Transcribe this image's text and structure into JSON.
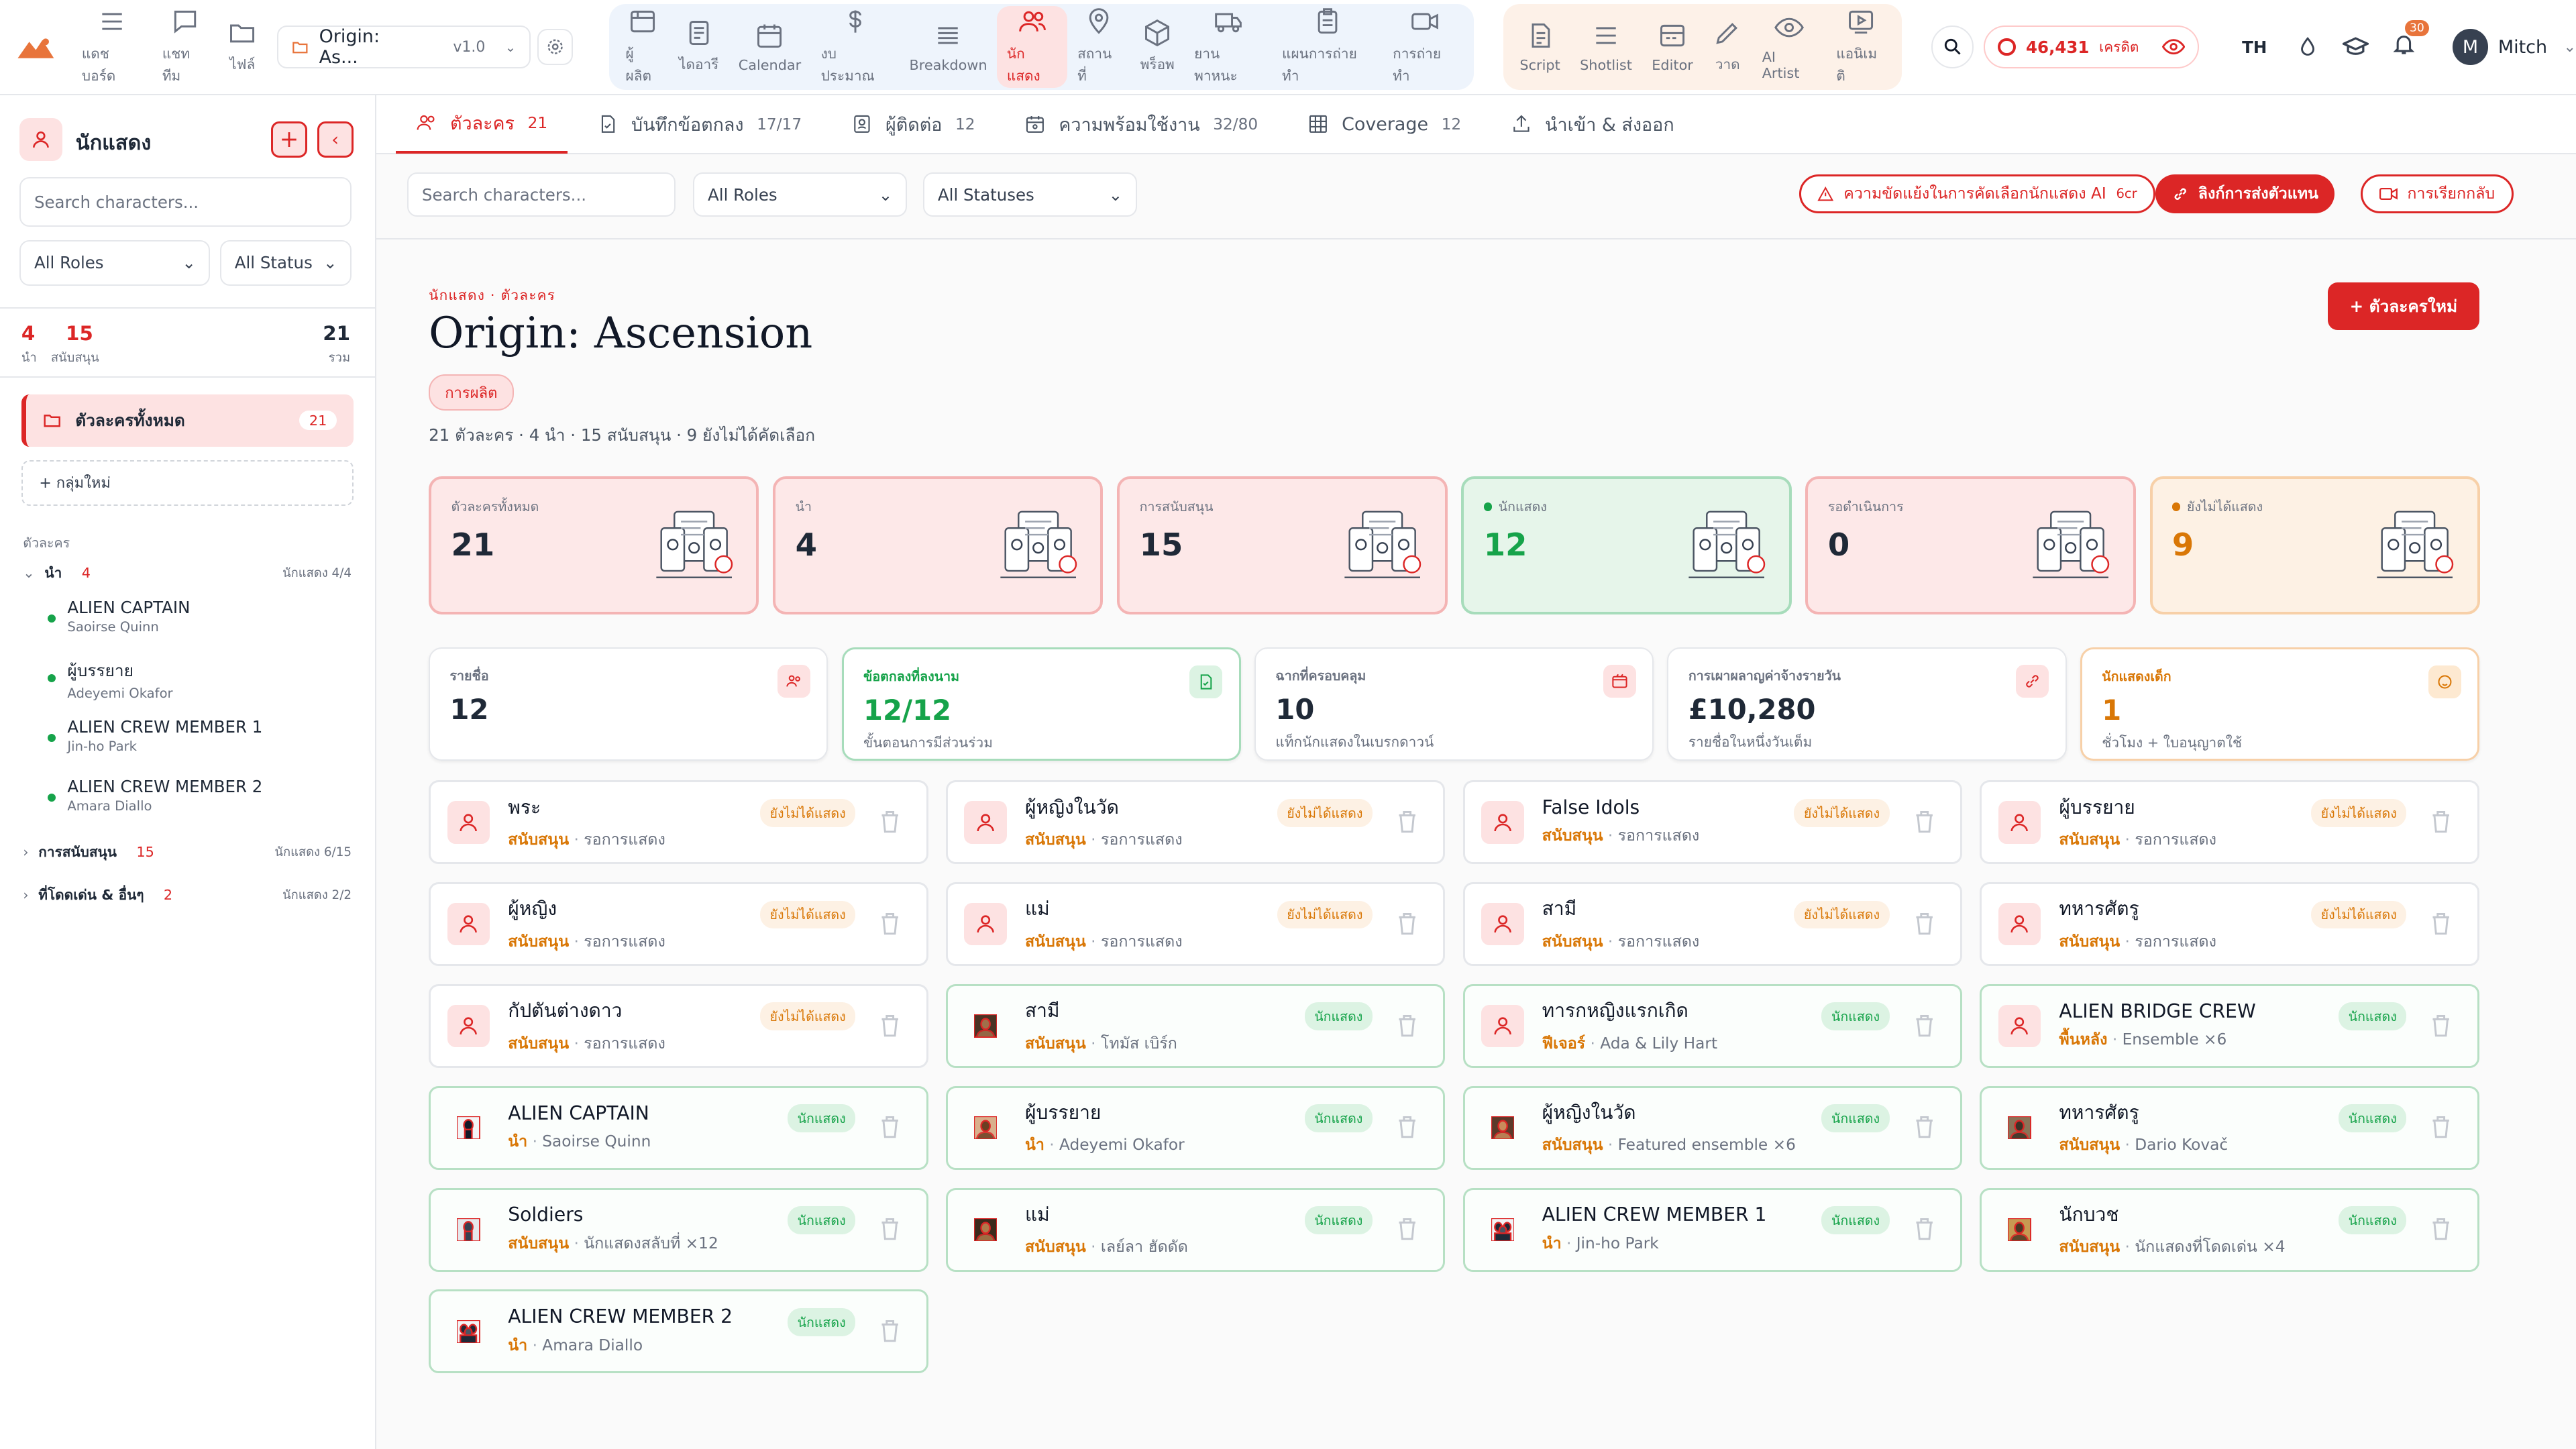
{
  "topbar": {
    "nav_left": [
      {
        "name": "dashboard",
        "label": "แดชบอร์ด"
      },
      {
        "name": "team-chat",
        "label": "แชททีม"
      },
      {
        "name": "files",
        "label": "ไฟล์"
      }
    ],
    "project": {
      "name": "Origin: As...",
      "version": "v1.0"
    },
    "nav_production": [
      {
        "name": "producer",
        "label": "ผู้ผลิต"
      },
      {
        "name": "diary",
        "label": "ไดอารี"
      },
      {
        "name": "calendar",
        "label": "Calendar"
      },
      {
        "name": "budget",
        "label": "งบประมาณ"
      },
      {
        "name": "breakdown",
        "label": "Breakdown"
      },
      {
        "name": "cast",
        "label": "นักแสดง"
      },
      {
        "name": "locations",
        "label": "สถานที่"
      },
      {
        "name": "props",
        "label": "พร็อพ"
      },
      {
        "name": "vehicles",
        "label": "ยานพาหนะ"
      },
      {
        "name": "shoot-plan",
        "label": "แผนการถ่ายทำ"
      },
      {
        "name": "shooting",
        "label": "การถ่ายทำ"
      }
    ],
    "nav_creative": [
      {
        "name": "script",
        "label": "Script"
      },
      {
        "name": "shotlist",
        "label": "Shotlist"
      },
      {
        "name": "editor",
        "label": "Editor"
      },
      {
        "name": "draw",
        "label": "วาด"
      },
      {
        "name": "ai-artist",
        "label": "AI Artist"
      },
      {
        "name": "animatic",
        "label": "แอนิเมติ"
      }
    ],
    "credits": "46,431",
    "credits_unit": "เครดิต",
    "lang": "TH",
    "notifications": "30",
    "user": {
      "initial": "M",
      "name": "Mitch"
    }
  },
  "sidebar": {
    "title": "นักแสดง",
    "search_placeholder": "Search characters...",
    "filter_role": "All Roles",
    "filter_status": "All Status",
    "stats": {
      "lead": "4",
      "lead_label": "นำ",
      "support": "15",
      "support_label": "สนับสนุน",
      "total": "21",
      "total_label": "รวม"
    },
    "all_chars": {
      "label": "ตัวละครทั้งหมด",
      "count": "21"
    },
    "new_group": "+  กลุ่มใหม่",
    "section_label": "ตัวละคร",
    "groups": [
      {
        "name": "นำ",
        "count": "4",
        "cast": "นักแสดง 4/4"
      },
      {
        "name": "การสนับสนุน",
        "count": "15",
        "cast": "นักแสดง 6/15"
      },
      {
        "name": "ที่โดดเด่น & อื่นๆ",
        "count": "2",
        "cast": "นักแสดง 2/2"
      }
    ],
    "lead_items": [
      {
        "name": "ALIEN CAPTAIN",
        "actor": "Saoirse Quinn"
      },
      {
        "name": "ผู้บรรยาย",
        "actor": "Adeyemi Okafor"
      },
      {
        "name": "ALIEN CREW MEMBER 1",
        "actor": "Jin-ho Park"
      },
      {
        "name": "ALIEN CREW MEMBER 2",
        "actor": "Amara Diallo"
      }
    ]
  },
  "tabs": [
    {
      "label": "ตัวละคร",
      "count": "21"
    },
    {
      "label": "บันทึกข้อตกลง",
      "count": "17/17"
    },
    {
      "label": "ผู้ติดต่อ",
      "count": "12"
    },
    {
      "label": "ความพร้อมใช้งาน",
      "count": "32/80"
    },
    {
      "label": "Coverage",
      "count": "12"
    },
    {
      "label": "นำเข้า & ส่งออก",
      "count": ""
    }
  ],
  "toolbar": {
    "search_placeholder": "Search characters...",
    "roles": "All Roles",
    "statuses": "All Statuses",
    "ai_conflict": "ความขัดแย้งในการคัดเลือกนักแสดง AI",
    "ai_cost": "6cr",
    "agent_links": "ลิงก์การส่งตัวแทน",
    "callbacks": "การเรียกกลับ"
  },
  "header": {
    "breadcrumb": "นักแสดง · ตัวละคร",
    "title": "Origin: Ascension",
    "tag": "การผลิต",
    "summary": "21 ตัวละคร · 4 นำ · 15 สนับสนุน · 9 ยังไม่ได้คัดเลือก",
    "new_button": "+ ตัวละครใหม่"
  },
  "stats": [
    {
      "label": "ตัวละครทั้งหมด",
      "value": "21",
      "tone": "red",
      "dot": false
    },
    {
      "label": "นำ",
      "value": "4",
      "tone": "red",
      "dot": false
    },
    {
      "label": "การสนับสนุน",
      "value": "15",
      "tone": "red",
      "dot": false
    },
    {
      "label": "นักแสดง",
      "value": "12",
      "tone": "green",
      "dot": true
    },
    {
      "label": "รอดำเนินการ",
      "value": "0",
      "tone": "red",
      "dot": false
    },
    {
      "label": "ยังไม่ได้แสดง",
      "value": "9",
      "tone": "orange",
      "dot": true
    }
  ],
  "minis": [
    {
      "label": "รายชื่อ",
      "value": "12",
      "sub": "",
      "tone": "plain"
    },
    {
      "label": "ข้อตกลงที่ลงนาม",
      "value": "12/12",
      "sub": "ขั้นตอนการมีส่วนร่วม",
      "tone": "green"
    },
    {
      "label": "ฉากที่ครอบคลุม",
      "value": "10",
      "sub": "แท็กนักแสดงในเบรกดาวน์",
      "tone": "plain"
    },
    {
      "label": "การเผาผลาญค่าจ้างรายวัน",
      "value": "£10,280",
      "sub": "รายชื่อในหนึ่งวันเต็ม",
      "tone": "plain"
    },
    {
      "label": "นักแสดงเด็ก",
      "value": "1",
      "sub": "ชั่วโมง + ใบอนุญาตใช้",
      "tone": "orange"
    }
  ],
  "characters": [
    {
      "name": "พระ",
      "role": "สนับสนุน",
      "actor": "รอการแสดง",
      "status": "ยังไม่ได้แสดง",
      "cast": false,
      "img": ""
    },
    {
      "name": "ผู้หญิงในวัด",
      "role": "สนับสนุน",
      "actor": "รอการแสดง",
      "status": "ยังไม่ได้แสดง",
      "cast": false,
      "img": ""
    },
    {
      "name": "False Idols",
      "role": "สนับสนุน",
      "actor": "รอการแสดง",
      "status": "ยังไม่ได้แสดง",
      "cast": false,
      "img": ""
    },
    {
      "name": "ผู้บรรยาย",
      "role": "สนับสนุน",
      "actor": "รอการแสดง",
      "status": "ยังไม่ได้แสดง",
      "cast": false,
      "img": ""
    },
    {
      "name": "ผู้หญิง",
      "role": "สนับสนุน",
      "actor": "รอการแสดง",
      "status": "ยังไม่ได้แสดง",
      "cast": false,
      "img": ""
    },
    {
      "name": "แม่",
      "role": "สนับสนุน",
      "actor": "รอการแสดง",
      "status": "ยังไม่ได้แสดง",
      "cast": false,
      "img": ""
    },
    {
      "name": "สามี",
      "role": "สนับสนุน",
      "actor": "รอการแสดง",
      "status": "ยังไม่ได้แสดง",
      "cast": false,
      "img": ""
    },
    {
      "name": "ทหารศัตรู",
      "role": "สนับสนุน",
      "actor": "รอการแสดง",
      "status": "ยังไม่ได้แสดง",
      "cast": false,
      "img": ""
    },
    {
      "name": "กัปตันต่างดาว",
      "role": "สนับสนุน",
      "actor": "รอการแสดง",
      "status": "ยังไม่ได้แสดง",
      "cast": false,
      "img": ""
    },
    {
      "name": "สามี",
      "role": "สนับสนุน",
      "actor": "โทมัส เบิร์ก",
      "status": "นักแสดง",
      "cast": true,
      "img": "man-portrait"
    },
    {
      "name": "ทารกหญิงแรกเกิด",
      "role": "ฟีเจอร์",
      "actor": "Ada & Lily Hart",
      "status": "นักแสดง",
      "cast": true,
      "img": ""
    },
    {
      "name": "ALIEN BRIDGE CREW",
      "role": "พื้นหลัง",
      "actor": "Ensemble ×6",
      "status": "นักแสดง",
      "cast": true,
      "img": ""
    },
    {
      "name": "ALIEN CAPTAIN",
      "role": "นำ",
      "actor": "Saoirse Quinn",
      "status": "นักแสดง",
      "cast": true,
      "img": "alien-portrait"
    },
    {
      "name": "ผู้บรรยาย",
      "role": "นำ",
      "actor": "Adeyemi Okafor",
      "status": "นักแสดง",
      "cast": true,
      "img": "woman-portrait"
    },
    {
      "name": "ผู้หญิงในวัด",
      "role": "สนับสนุน",
      "actor": "Featured ensemble ×6",
      "status": "นักแสดง",
      "cast": true,
      "img": "temple-women"
    },
    {
      "name": "ทหารศัตรู",
      "role": "สนับสนุน",
      "actor": "Dario Kovač",
      "status": "นักแสดง",
      "cast": true,
      "img": "soldiers"
    },
    {
      "name": "Soldiers",
      "role": "สนับสนุน",
      "actor": "นักแสดงสลับที่ ×12",
      "status": "นักแสดง",
      "cast": true,
      "img": "soldier-figure"
    },
    {
      "name": "แม่",
      "role": "สนับสนุน",
      "actor": "เลย์ลา ฮัดดัด",
      "status": "นักแสดง",
      "cast": true,
      "img": "mother-portrait"
    },
    {
      "name": "ALIEN CREW MEMBER 1",
      "role": "นำ",
      "actor": "Jin-ho Park",
      "status": "นักแสดง",
      "cast": true,
      "img": "alien-group"
    },
    {
      "name": "นักบวช",
      "role": "สนับสนุน",
      "actor": "นักแสดงที่โดดเด่น ×4",
      "status": "นักแสดง",
      "cast": true,
      "img": "monk-scene"
    },
    {
      "name": "ALIEN CREW MEMBER 2",
      "role": "นำ",
      "actor": "Amara Diallo",
      "status": "นักแสดง",
      "cast": true,
      "img": "alien-group"
    }
  ],
  "colors": {
    "accent": "#dc2626",
    "green": "#16a34a",
    "orange": "#d97706"
  }
}
